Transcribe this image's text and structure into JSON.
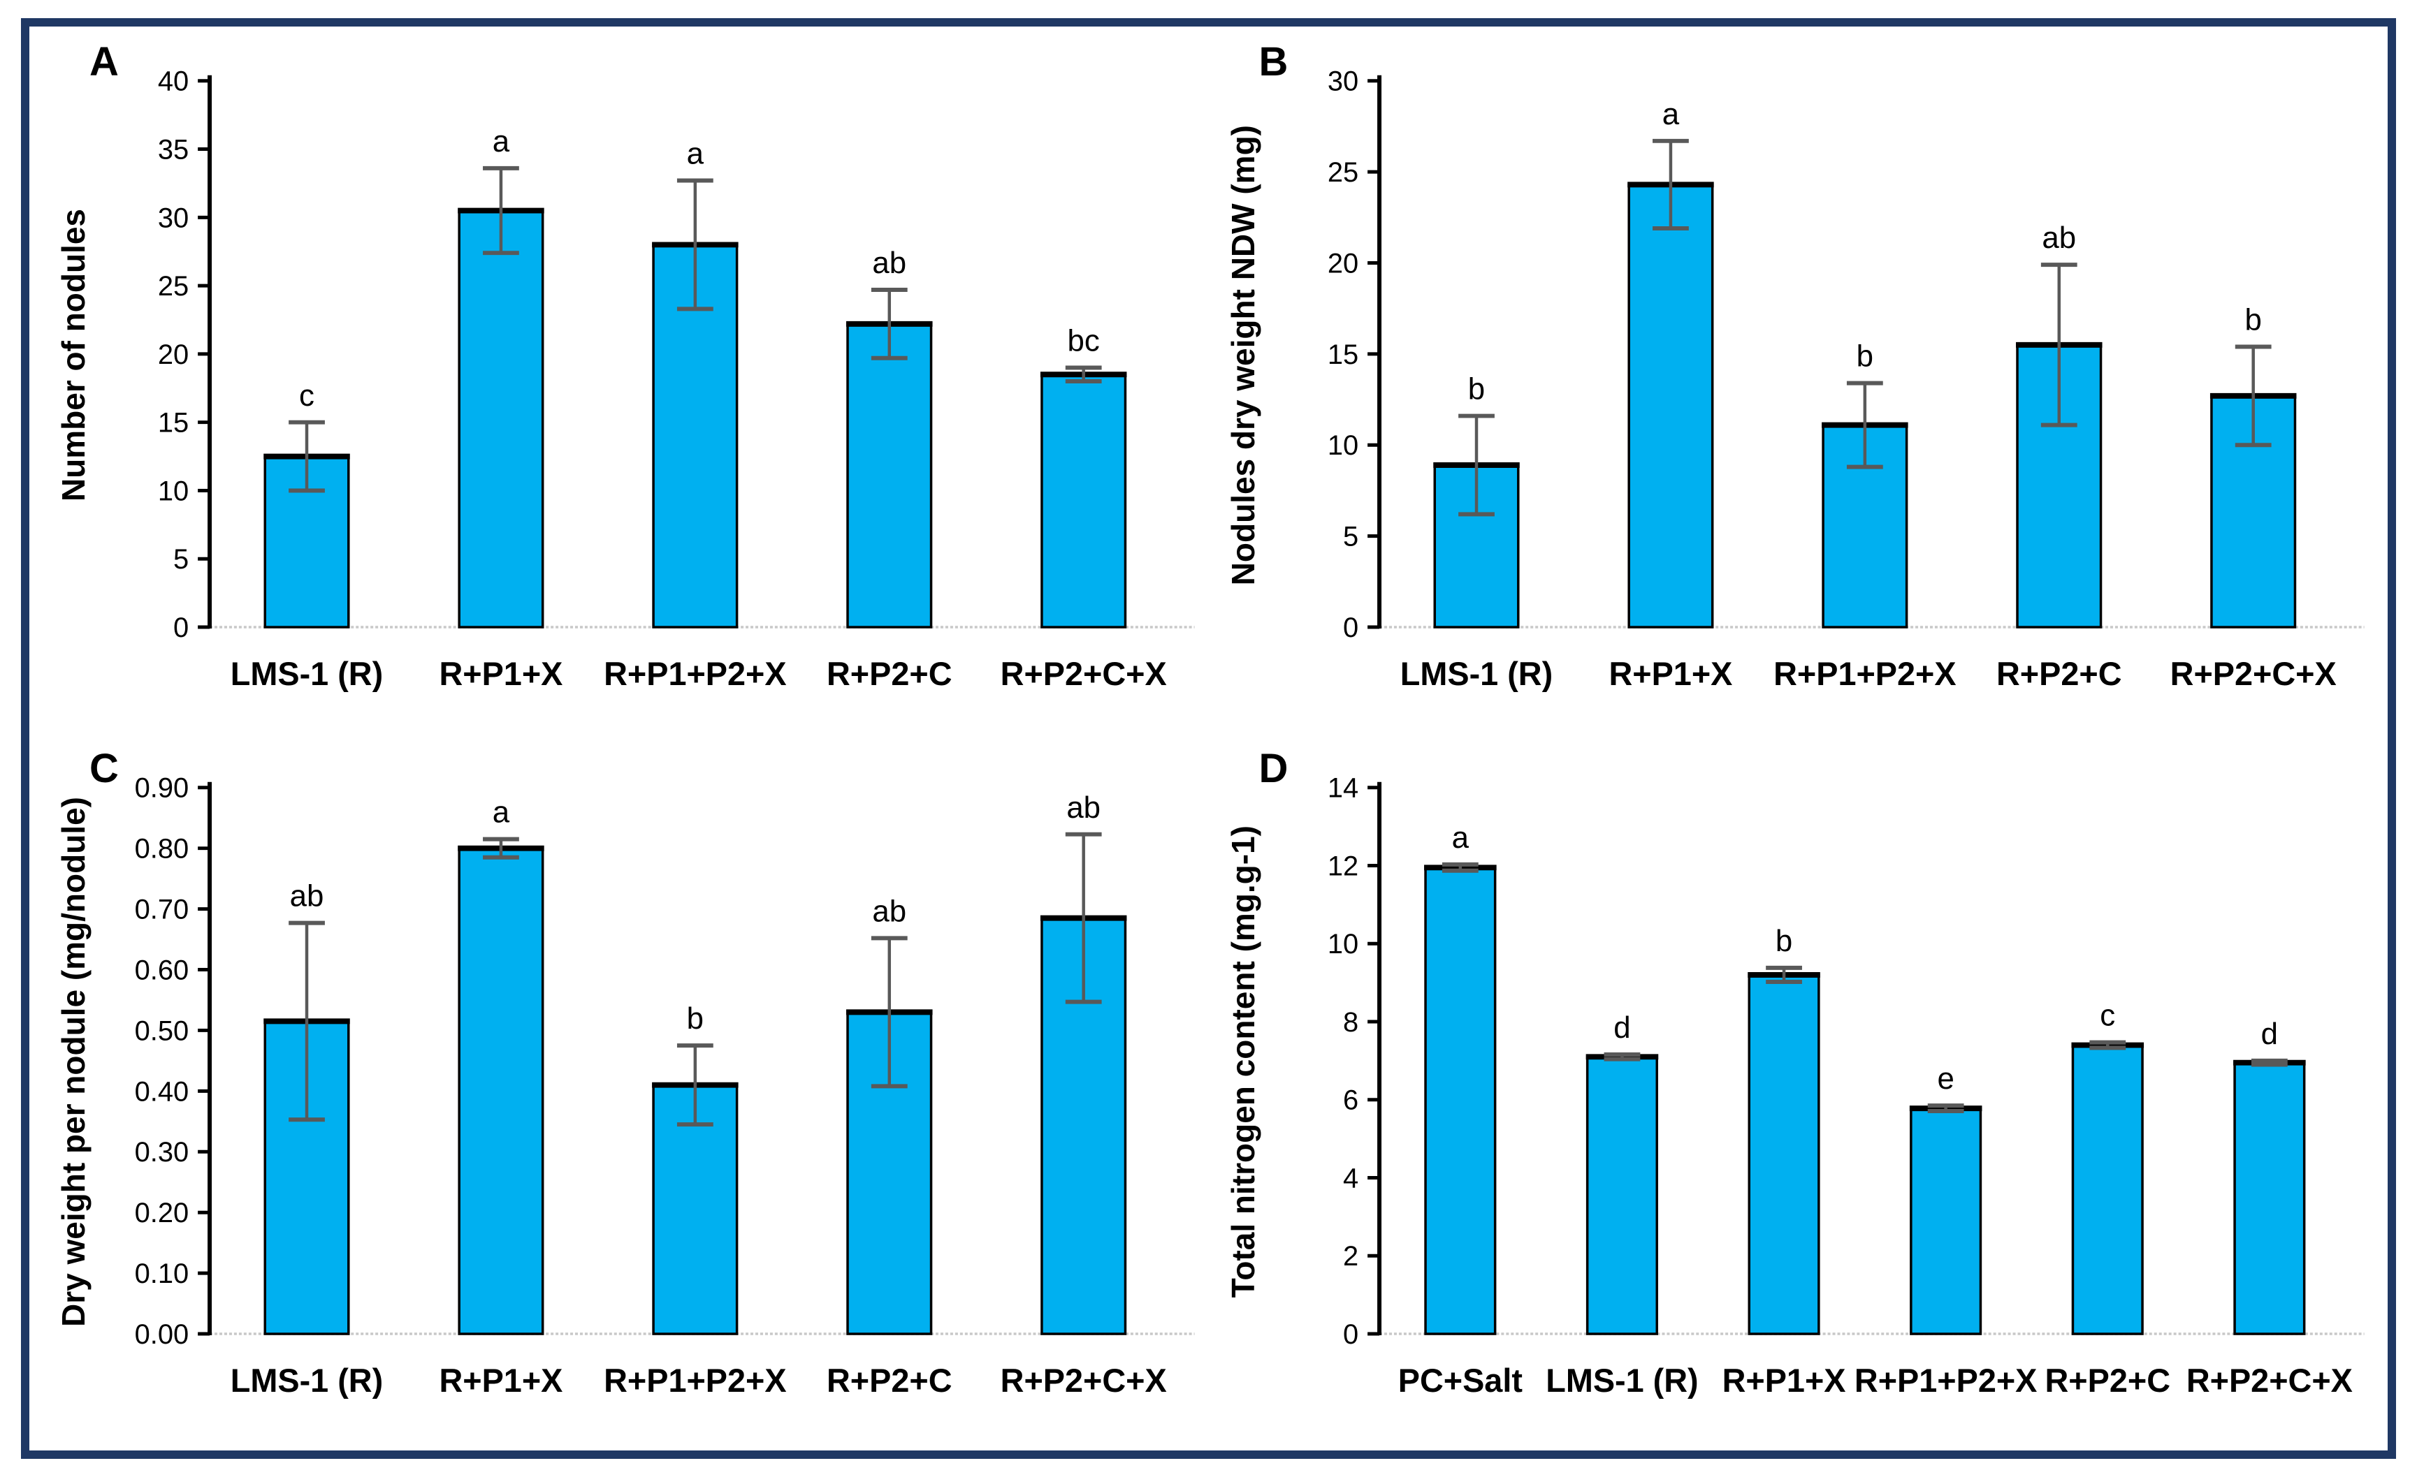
{
  "figure": {
    "border_color": "#1F3864",
    "background": "#ffffff",
    "bar_fill": "#00B0F0",
    "bar_stroke": "#000000",
    "error_bar_color": "#595959",
    "baseline_color": "#c8c8c8"
  },
  "chart_data": [
    {
      "type": "bar",
      "panel_label": "A",
      "title": "",
      "xlabel": "",
      "ylabel": "Number of nodules",
      "ylim": [
        0,
        40
      ],
      "ytick_step": 5,
      "ytick_decimals": 0,
      "grid": "off",
      "legend": "none",
      "categories": [
        "LMS-1 (R)",
        "R+P1+X",
        "R+P1+P2+X",
        "R+P2+C",
        "R+P2+C+X"
      ],
      "values": [
        12.5,
        30.5,
        28.0,
        22.2,
        18.5
      ],
      "errors": [
        2.5,
        3.1,
        4.7,
        2.5,
        0.5
      ],
      "sig_letters": [
        "c",
        "a",
        "a",
        "ab",
        "bc"
      ]
    },
    {
      "type": "bar",
      "panel_label": "B",
      "title": "",
      "xlabel": "",
      "ylabel": "Nodules dry weight NDW (mg)",
      "ylim": [
        0,
        30
      ],
      "ytick_step": 5,
      "ytick_decimals": 0,
      "grid": "off",
      "legend": "none",
      "categories": [
        "LMS-1 (R)",
        "R+P1+X",
        "R+P1+P2+X",
        "R+P2+C",
        "R+P2+C+X"
      ],
      "values": [
        8.9,
        24.3,
        11.1,
        15.5,
        12.7
      ],
      "errors": [
        2.7,
        2.4,
        2.3,
        4.4,
        2.7
      ],
      "sig_letters": [
        "b",
        "a",
        "b",
        "ab",
        "b"
      ]
    },
    {
      "type": "bar",
      "panel_label": "C",
      "title": "",
      "xlabel": "",
      "ylabel": "Dry weight per nodule (mg/nodule)",
      "ylim": [
        0,
        0.9
      ],
      "ytick_step": 0.1,
      "ytick_decimals": 2,
      "grid": "off",
      "legend": "none",
      "categories": [
        "LMS-1 (R)",
        "R+P1+X",
        "R+P1+P2+X",
        "R+P2+C",
        "R+P2+C+X"
      ],
      "values": [
        0.515,
        0.8,
        0.41,
        0.53,
        0.685
      ],
      "errors": [
        0.162,
        0.015,
        0.065,
        0.122,
        0.138
      ],
      "sig_letters": [
        "ab",
        "a",
        "b",
        "ab",
        "ab"
      ]
    },
    {
      "type": "bar",
      "panel_label": "D",
      "title": "",
      "xlabel": "",
      "ylabel": "Total nitrogen content (mg.g-1)",
      "ylim": [
        0,
        14
      ],
      "ytick_step": 2,
      "ytick_decimals": 0,
      "grid": "off",
      "legend": "none",
      "categories": [
        "PC+Salt",
        "LMS-1 (R)",
        "R+P1+X",
        "R+P1+P2+X",
        "R+P2+C",
        "R+P2+C+X"
      ],
      "values": [
        11.95,
        7.1,
        9.2,
        5.78,
        7.4,
        6.95
      ],
      "errors": [
        0.08,
        0.06,
        0.18,
        0.07,
        0.07,
        0.05
      ],
      "sig_letters": [
        "a",
        "d",
        "b",
        "e",
        "c",
        "d"
      ]
    }
  ]
}
